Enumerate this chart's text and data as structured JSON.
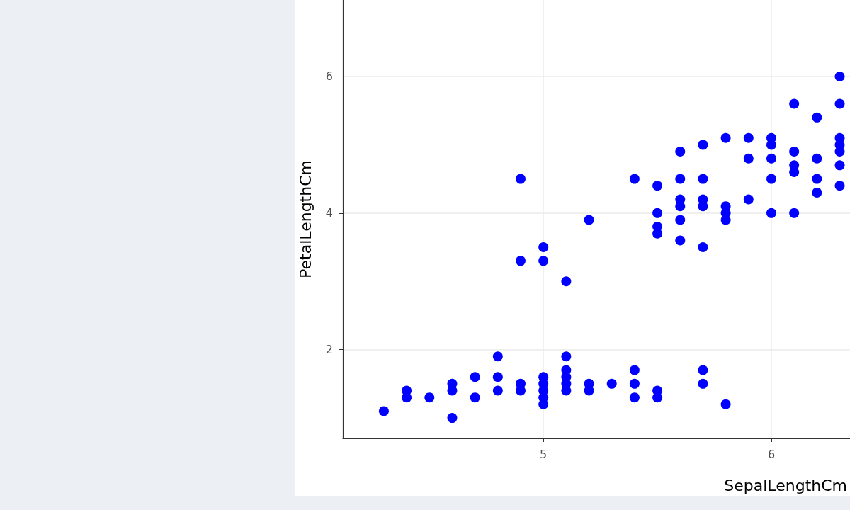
{
  "chart_data": {
    "type": "scatter",
    "xlabel": "SepalLengthCm",
    "ylabel": "PetalLengthCm",
    "xlim": [
      4.12,
      6.345
    ],
    "xticks": [
      5,
      6
    ],
    "ylim": [
      0.7,
      7.12
    ],
    "yticks": [
      2,
      4,
      6
    ],
    "grid": true,
    "marker": "circle",
    "series": [
      {
        "color": "#0000ff",
        "x": [
          4.3,
          4.4,
          4.4,
          4.5,
          4.6,
          4.6,
          4.6,
          4.7,
          4.7,
          4.8,
          4.8,
          4.8,
          4.9,
          4.9,
          5.0,
          5.0,
          5.0,
          5.0,
          5.0,
          5.1,
          5.1,
          5.1,
          5.1,
          5.1,
          5.2,
          5.2,
          5.3,
          5.4,
          5.4,
          5.4,
          5.5,
          5.5,
          5.7,
          5.7,
          5.8,
          4.9,
          4.9,
          5.0,
          5.0,
          5.1,
          5.2,
          5.4,
          5.5,
          5.5,
          5.5,
          5.5,
          5.6,
          5.6,
          5.6,
          5.6,
          5.6,
          5.6,
          5.7,
          5.7,
          5.7,
          5.7,
          5.7,
          5.8,
          5.8,
          5.8,
          5.8,
          5.9,
          5.9,
          5.9,
          6.0,
          6.0,
          6.0,
          6.0,
          6.0,
          6.1,
          6.1,
          6.1,
          6.1,
          6.1,
          6.2,
          6.2,
          6.2,
          6.2,
          6.3,
          6.3,
          6.3,
          6.3,
          6.3,
          6.3,
          6.3
        ],
        "values": [
          1.1,
          1.4,
          1.3,
          1.3,
          1.5,
          1.4,
          1.0,
          1.6,
          1.3,
          1.9,
          1.6,
          1.4,
          1.5,
          1.4,
          1.6,
          1.5,
          1.4,
          1.3,
          1.2,
          1.9,
          1.7,
          1.6,
          1.5,
          1.4,
          1.5,
          1.4,
          1.5,
          1.7,
          1.5,
          1.3,
          1.4,
          1.3,
          1.7,
          1.5,
          1.2,
          4.5,
          3.3,
          3.5,
          3.3,
          3.0,
          3.9,
          4.5,
          4.4,
          4.0,
          3.8,
          3.7,
          4.9,
          4.5,
          4.2,
          4.1,
          3.9,
          3.6,
          5.0,
          4.5,
          4.2,
          4.1,
          3.5,
          5.1,
          4.1,
          4.0,
          3.9,
          5.1,
          4.8,
          4.2,
          5.1,
          5.0,
          4.8,
          4.5,
          4.0,
          5.6,
          4.9,
          4.7,
          4.6,
          4.0,
          5.4,
          4.8,
          4.5,
          4.3,
          6.0,
          5.6,
          5.1,
          5.0,
          4.9,
          4.7,
          4.4
        ]
      }
    ]
  }
}
